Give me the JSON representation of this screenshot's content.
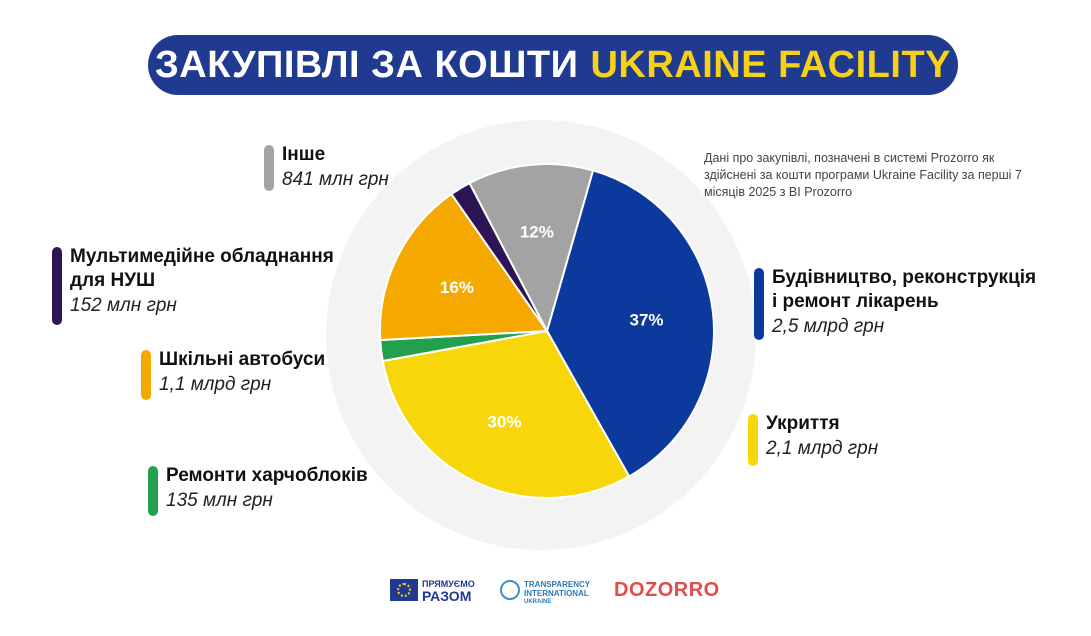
{
  "header": {
    "title_main": "ЗАКУПІВЛІ ЗА КОШТИ",
    "title_accent": "UKRAINE FACILITY"
  },
  "note": "Дані про закупівлі, позначені в системі Prozorro як здійснені за кошти програми Ukraine Facility за перші 7 місяців 2025 з BI Prozorro",
  "colors": {
    "navy": "#1f3a8f",
    "yellow": "#f7d117"
  },
  "chart_data": {
    "type": "pie",
    "title": "ЗАКУПІВЛІ ЗА КОШТИ UKRAINE FACILITY",
    "slices": [
      {
        "name": "Будівництво, реконструкція і ремонт лікарень",
        "line1": "Будівництво, реконструкція",
        "line2": "і ремонт лікарень",
        "value_label": "2,5 млрд грн",
        "value": 2500,
        "percent": 37,
        "percent_label": "37%",
        "color": "#0b3a9c"
      },
      {
        "name": "Укриття",
        "line1": "Укриття",
        "line2": "",
        "value_label": "2,1 млрд грн",
        "value": 2100,
        "percent": 30,
        "percent_label": "30%",
        "color": "#f7d60a"
      },
      {
        "name": "Ремонти харчоблоків",
        "line1": "Ремонти харчоблоків",
        "line2": "",
        "value_label": "135 млн грн",
        "value": 135,
        "percent": 2,
        "percent_label": "",
        "color": "#22a04b"
      },
      {
        "name": "Шкільні автобуси",
        "line1": "Шкільні автобуси",
        "line2": "",
        "value_label": "1,1 млрд грн",
        "value": 1100,
        "percent": 16,
        "percent_label": "16%",
        "color": "#f5a800"
      },
      {
        "name": "Мультимедійне обладнання для НУШ",
        "line1": "Мультимедійне обладнання",
        "line2": "для НУШ",
        "value_label": "152 млн грн",
        "value": 152,
        "percent": 2,
        "percent_label": "",
        "color": "#2d1454"
      },
      {
        "name": "Інше",
        "line1": "Інше",
        "line2": "",
        "value_label": "841 млн грн",
        "value": 841,
        "percent": 12,
        "percent_label": "12%",
        "color": "#a3a3a3"
      }
    ]
  },
  "logos": {
    "eu_line1": "ПРЯМУЄМО",
    "eu_line2": "РАЗОМ",
    "ti_line1": "TRANSPARENCY",
    "ti_line2": "INTERNATIONAL",
    "ti_line3": "UKRAINE",
    "dozorro": "DOZORRO"
  }
}
